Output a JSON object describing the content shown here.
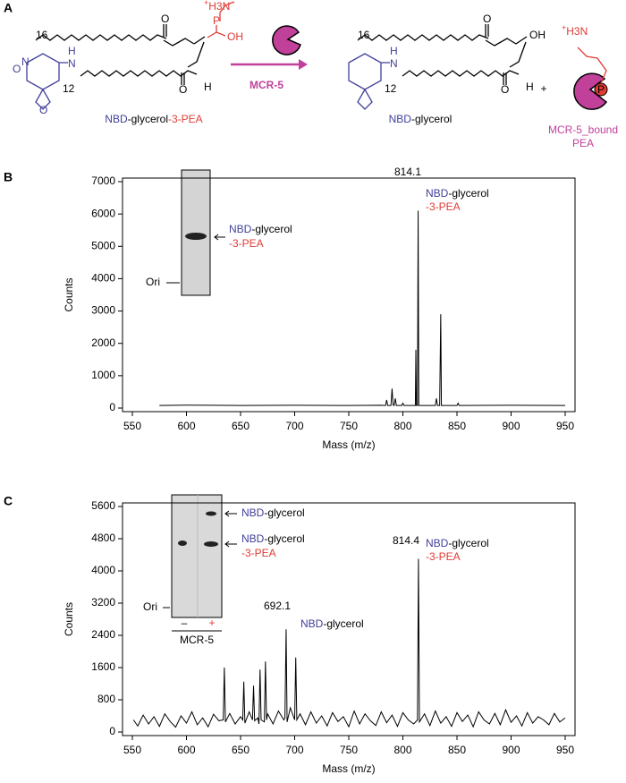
{
  "panel_a": {
    "label": "A",
    "chain_top": "16",
    "chain_bottom": "12",
    "amine": "H3N",
    "charge": "+",
    "oxygen": "O",
    "phosphorus": "P",
    "hydroxyl": "OH",
    "nitrogen": "N",
    "hydrogen": "H",
    "substrate": [
      "NBD",
      "-glycerol",
      "-3-PEA"
    ],
    "enzyme": "MCR-5",
    "product": [
      "NBD",
      "-glycerol"
    ],
    "plus": "+",
    "bound": [
      "MCR-5_bound",
      "PEA"
    ]
  },
  "chart_data": [
    {
      "panel_label": "B",
      "type": "line",
      "color": "#000000",
      "x": [
        575,
        600,
        650,
        700,
        750,
        780,
        784,
        785,
        786,
        789,
        790,
        791,
        792,
        793,
        794,
        799,
        800,
        801,
        810,
        811.5,
        812,
        812.5,
        813.5,
        814.1,
        814.7,
        820,
        830,
        831,
        832,
        834,
        835,
        835.6,
        850,
        851,
        852,
        900,
        950
      ],
      "values": [
        80,
        90,
        80,
        85,
        80,
        85,
        80,
        250,
        80,
        80,
        600,
        90,
        80,
        300,
        80,
        80,
        150,
        80,
        80,
        80,
        1800,
        80,
        80,
        6100,
        80,
        80,
        80,
        300,
        80,
        80,
        2900,
        80,
        80,
        150,
        80,
        85,
        80
      ],
      "xlim": [
        550,
        950
      ],
      "xticks": [
        550,
        600,
        650,
        700,
        750,
        800,
        850,
        900,
        950
      ],
      "ylim": [
        0,
        7000
      ],
      "yticks": [
        0,
        1000,
        2000,
        3000,
        4000,
        5000,
        6000,
        7000
      ],
      "xlabel": "Mass (m/z)",
      "ylabel": "Counts",
      "peaks": [
        {
          "label": "814.1",
          "name": [
            "NBD",
            "-glycerol",
            "-3-PEA"
          ]
        }
      ],
      "inset": {
        "band_label": [
          "NBD",
          "-glycerol",
          "-3-PEA"
        ],
        "origin": "Ori"
      }
    },
    {
      "panel_label": "C",
      "type": "line",
      "color": "#000000",
      "x": [
        551,
        555,
        560,
        565,
        570,
        575,
        580,
        585,
        590,
        595,
        600,
        605,
        610,
        615,
        620,
        625,
        630,
        634,
        635,
        636,
        640,
        645,
        650,
        652,
        653,
        654,
        658,
        661,
        662,
        663,
        666,
        667,
        668,
        669,
        672,
        673,
        674,
        675,
        680,
        685,
        690,
        691,
        692.1,
        693,
        696,
        700,
        701,
        702,
        705,
        710,
        715,
        720,
        725,
        730,
        735,
        740,
        745,
        750,
        755,
        760,
        765,
        770,
        775,
        780,
        785,
        790,
        795,
        800,
        805,
        810,
        813.5,
        814.4,
        815.3,
        820,
        825,
        830,
        835,
        840,
        845,
        850,
        855,
        860,
        865,
        870,
        875,
        880,
        885,
        890,
        895,
        900,
        905,
        910,
        915,
        920,
        925,
        930,
        935,
        940,
        945,
        950
      ],
      "values": [
        300,
        150,
        420,
        200,
        380,
        140,
        450,
        260,
        120,
        400,
        220,
        500,
        180,
        350,
        130,
        440,
        280,
        300,
        1600,
        250,
        460,
        200,
        380,
        300,
        1250,
        220,
        500,
        300,
        1150,
        280,
        350,
        200,
        1550,
        300,
        250,
        1750,
        300,
        450,
        200,
        520,
        300,
        350,
        2550,
        250,
        600,
        300,
        1850,
        300,
        450,
        180,
        500,
        220,
        400,
        150,
        480,
        260,
        380,
        130,
        520,
        200,
        450,
        280,
        160,
        500,
        230,
        420,
        140,
        480,
        300,
        200,
        300,
        4300,
        250,
        450,
        160,
        520,
        220,
        380,
        140,
        480,
        260,
        420,
        130,
        500,
        300,
        200,
        460,
        180,
        550,
        240,
        400,
        150,
        480,
        220,
        380,
        300,
        180,
        460,
        250,
        350
      ],
      "xlim": [
        550,
        950
      ],
      "xticks": [
        550,
        600,
        650,
        700,
        750,
        800,
        850,
        900,
        950
      ],
      "ylim": [
        0,
        5600
      ],
      "yticks": [
        0,
        800,
        1600,
        2400,
        3200,
        4000,
        4800,
        5600
      ],
      "xlabel": "Mass (m/z)",
      "ylabel": "Counts",
      "peaks": [
        {
          "label": "814.4",
          "name": [
            "NBD",
            "-glycerol",
            "-3-PEA"
          ]
        },
        {
          "label": "692.1",
          "name": [
            "NBD",
            "-glycerol"
          ]
        }
      ],
      "inset": {
        "band_labels": [
          [
            "NBD",
            "-glycerol"
          ],
          [
            "NBD",
            "-glycerol",
            "-3-PEA"
          ]
        ],
        "origin": "Ori",
        "lanes": [
          "–",
          "+"
        ],
        "treatment": "MCR-5"
      }
    }
  ]
}
